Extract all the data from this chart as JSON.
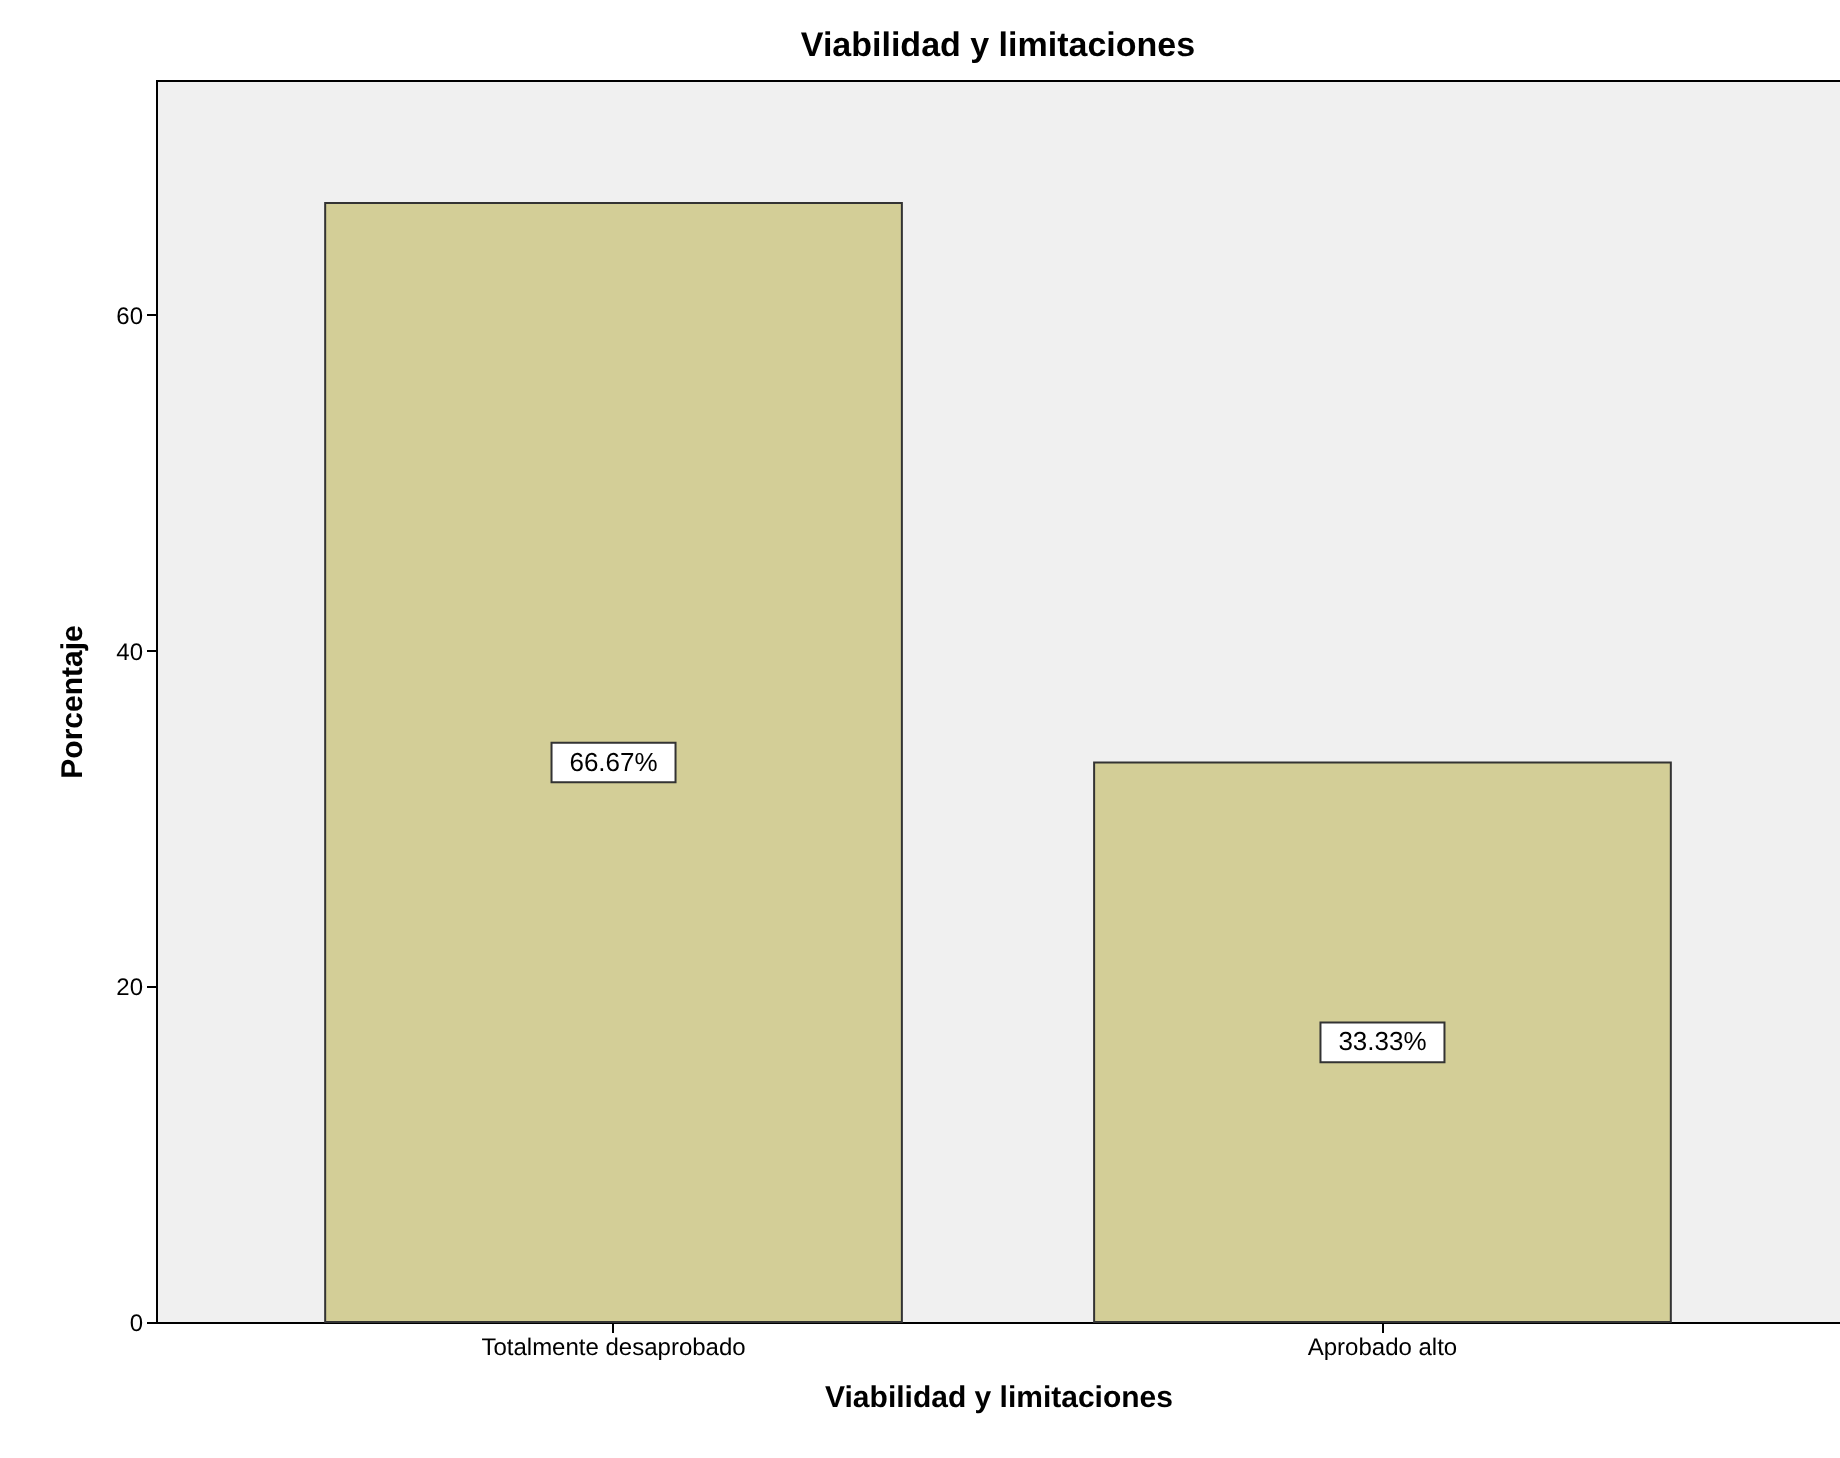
{
  "chart_data": {
    "type": "bar",
    "title": "Viabilidad y limitaciones",
    "xlabel": "Viabilidad y limitaciones",
    "ylabel": "Porcentaje",
    "categories": [
      "Totalmente desaprobado",
      "Aprobado alto"
    ],
    "values": [
      66.67,
      33.33
    ],
    "color": "#d3ce97",
    "value_labels": [
      "66.67%",
      "33.33%"
    ],
    "ylim": [
      0,
      74
    ],
    "yticks": [
      0,
      20,
      40,
      60
    ],
    "grid": false
  }
}
